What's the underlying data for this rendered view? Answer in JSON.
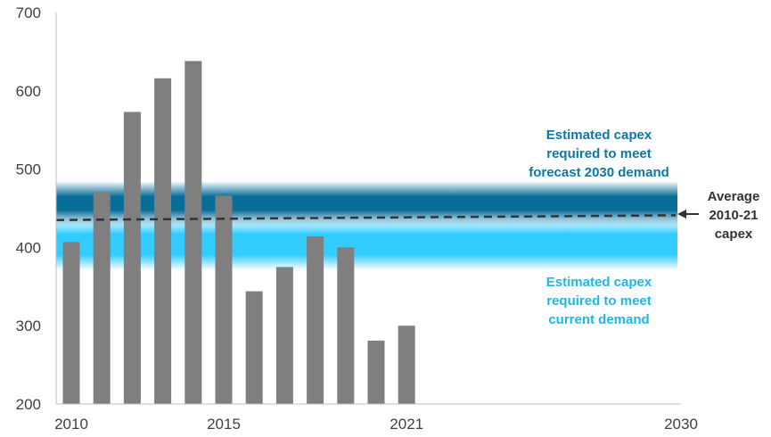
{
  "chart_data": {
    "type": "bar",
    "categories": [
      "2010",
      "2011",
      "2012",
      "2013",
      "2014",
      "2015",
      "2016",
      "2017",
      "2018",
      "2019",
      "2020",
      "2021"
    ],
    "values": [
      407,
      471,
      573,
      616,
      638,
      466,
      344,
      375,
      414,
      400,
      281,
      300
    ],
    "x_ticks": [
      "2010",
      "2015",
      "2021",
      "2030"
    ],
    "x_range": [
      2010,
      2030
    ],
    "y_ticks": [
      "700",
      "600",
      "500",
      "400",
      "300",
      "200"
    ],
    "ylim": [
      200,
      700
    ],
    "bar_color": "#7f7f7f",
    "bands": [
      {
        "label_lines": [
          "Estimated capex",
          "required to meet",
          "forecast 2030 demand"
        ],
        "center": 454,
        "color": "#086d99"
      },
      {
        "label_lines": [
          "Estimated capex",
          "required to meet",
          "current demand"
        ],
        "center": 398,
        "color": "#33ccff"
      }
    ],
    "average_line": {
      "label_lines": [
        "Average",
        "2010-21",
        "capex"
      ],
      "from_value": 435,
      "to_value": 441,
      "color": "#333333"
    }
  }
}
